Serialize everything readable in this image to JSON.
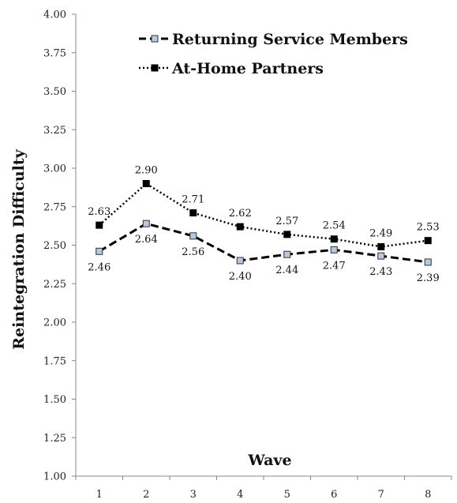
{
  "chart_data": {
    "type": "line",
    "xlabel": "Wave",
    "ylabel": "Reintegration Difficulty",
    "x": [
      1,
      2,
      3,
      4,
      5,
      6,
      7,
      8
    ],
    "ylim": [
      1.0,
      4.0
    ],
    "yticks": [
      "1.00",
      "1.25",
      "1.50",
      "1.75",
      "2.00",
      "2.25",
      "2.50",
      "2.75",
      "3.00",
      "3.25",
      "3.50",
      "3.75",
      "4.00"
    ],
    "grid": false,
    "legend": "top-right",
    "series": [
      {
        "name": "Returning Service Members",
        "values": [
          2.46,
          2.64,
          2.56,
          2.4,
          2.44,
          2.47,
          2.43,
          2.39
        ],
        "labels": [
          "2.46",
          "2.64",
          "2.56",
          "2.40",
          "2.44",
          "2.47",
          "2.43",
          "2.39"
        ],
        "line_style": "dashed",
        "marker_fill": "#b8c8e0",
        "color": "#000000"
      },
      {
        "name": "At-Home Partners",
        "values": [
          2.63,
          2.9,
          2.71,
          2.62,
          2.57,
          2.54,
          2.49,
          2.53
        ],
        "labels": [
          "2.63",
          "2.90",
          "2.71",
          "2.62",
          "2.57",
          "2.54",
          "2.49",
          "2.53"
        ],
        "line_style": "dotted",
        "marker_fill": "#000000",
        "color": "#000000"
      }
    ]
  }
}
